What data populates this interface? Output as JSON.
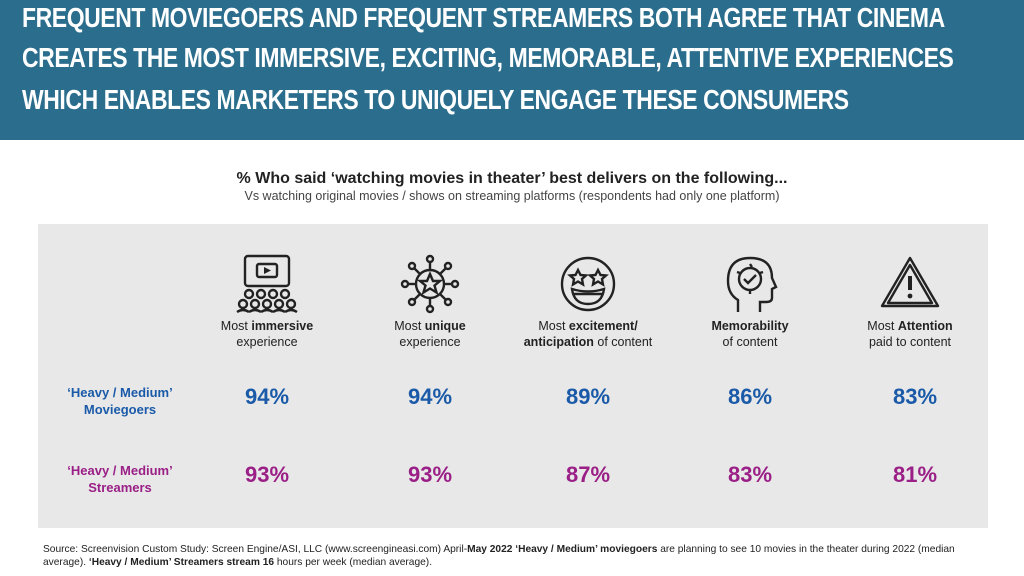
{
  "header": {
    "line1": "Frequent moviegoers and frequent streamers both agree that cinema",
    "line2": "creates the most immersive, exciting, memorable, attentive experiences",
    "line3": "which enables marketers to uniquely engage these consumers",
    "color": "#2a6d8c"
  },
  "chart_data": {
    "type": "table",
    "title": "% Who said ‘watching movies in theater’ best delivers on the following...",
    "subtitle": "Vs watching original movies / shows on streaming platforms (respondents had only one platform)",
    "categories": [
      {
        "pre": "Most ",
        "bold": "immersive",
        "post": " experience",
        "icon": "movie-audience-icon"
      },
      {
        "pre": "Most ",
        "bold": "unique",
        "post": " experience",
        "icon": "star-network-icon"
      },
      {
        "pre": "Most ",
        "bold": "excitement/ anticipation",
        "post": " of content",
        "icon": "star-eyes-face-icon"
      },
      {
        "pre": "",
        "bold": "Memorability",
        "post": " of content",
        "icon": "head-check-icon"
      },
      {
        "pre": "Most ",
        "bold": "Attention",
        "post": " paid to content",
        "icon": "warning-triangle-icon"
      }
    ],
    "series": [
      {
        "name": "‘Heavy / Medium’ Moviegoers",
        "values": [
          "94%",
          "94%",
          "89%",
          "86%",
          "83%"
        ],
        "color": "#1a5aa8"
      },
      {
        "name": "‘Heavy / Medium’ Streamers",
        "values": [
          "93%",
          "93%",
          "87%",
          "83%",
          "81%"
        ],
        "color": "#9a1f86"
      }
    ]
  },
  "source": {
    "t1": "Source: Screenvision Custom Study: Screen Engine/ASI, LLC (www.screengineasi.com) April-",
    "b1": "May 2022 ‘Heavy / Medium’ moviegoers",
    "t2": " are planning to see 10 movies in the theater during 2022 (median average). ",
    "b2": "‘Heavy / Medium’ Streamers stream 16",
    "t3": " hours per week (median average)."
  }
}
